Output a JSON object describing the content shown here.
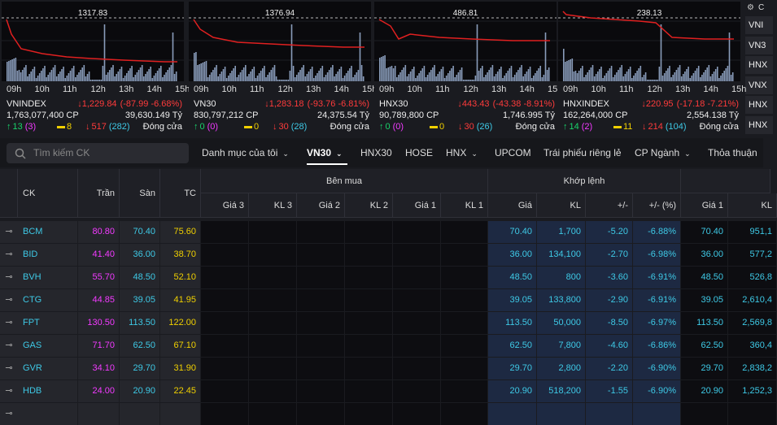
{
  "indices": [
    {
      "ref": "1317.83",
      "name": "VNINDEX",
      "price": "1,229.84",
      "change": "(-87.99 -6.68%)",
      "volume": "1,763,077,400 CP",
      "value": "39,630.149 Tỷ",
      "up": "13",
      "up_ceil": "(3)",
      "unchanged": "8",
      "down": "517",
      "down_floor": "(282)",
      "status": "Đóng cửa"
    },
    {
      "ref": "1376.94",
      "name": "VN30",
      "price": "1,283.18",
      "change": "(-93.76 -6.81%)",
      "volume": "830,797,212 CP",
      "value": "24,375.54 Tỷ",
      "up": "0",
      "up_ceil": "(0)",
      "unchanged": "0",
      "down": "30",
      "down_floor": "(28)",
      "status": "Đóng cửa"
    },
    {
      "ref": "486.81",
      "name": "HNX30",
      "price": "443.43",
      "change": "(-43.38 -8.91%)",
      "volume": "90,789,800 CP",
      "value": "1,746.995 Tỷ",
      "up": "0",
      "up_ceil": "(0)",
      "unchanged": "0",
      "down": "30",
      "down_floor": "(26)",
      "status": "Đóng cửa"
    },
    {
      "ref": "238.13",
      "name": "HNXINDEX",
      "price": "220.95",
      "change": "(-17.18 -7.21%)",
      "volume": "162,264,000 CP",
      "value": "2,554.138 Tỷ",
      "up": "14",
      "up_ceil": "(2)",
      "unchanged": "11",
      "down": "214",
      "down_floor": "(104)",
      "status": "Đóng cửa"
    }
  ],
  "time_labels": [
    "09h",
    "10h",
    "11h",
    "12h",
    "13h",
    "14h",
    "15h"
  ],
  "side_list": {
    "header": "C",
    "items": [
      "VNI",
      "VN3",
      "HNX",
      "VNX",
      "HNX",
      "HNX"
    ]
  },
  "search_placeholder": "Tìm kiếm CK",
  "tabs": [
    "Danh mục của tôi",
    "VN30",
    "HNX30",
    "HOSE",
    "HNX",
    "UPCOM",
    "Trái phiếu riêng lẻ",
    "CP Ngành",
    "Thỏa thuận"
  ],
  "table": {
    "groups": {
      "buy": "Bên mua",
      "match": "Khớp lệnh"
    },
    "columns": [
      "CK",
      "Trần",
      "Sàn",
      "TC",
      "Giá 3",
      "KL 3",
      "Giá 2",
      "KL 2",
      "Giá 1",
      "KL 1",
      "Giá",
      "KL",
      "+/-",
      "+/- (%)",
      "Giá 1",
      "KL"
    ],
    "rows": [
      [
        "BCM",
        "80.80",
        "70.40",
        "75.60",
        "70.40",
        "1,700",
        "-5.20",
        "-6.88%",
        "70.40",
        "951,1"
      ],
      [
        "BID",
        "41.40",
        "36.00",
        "38.70",
        "36.00",
        "134,100",
        "-2.70",
        "-6.98%",
        "36.00",
        "577,2"
      ],
      [
        "BVH",
        "55.70",
        "48.50",
        "52.10",
        "48.50",
        "800",
        "-3.60",
        "-6.91%",
        "48.50",
        "526,8"
      ],
      [
        "CTG",
        "44.85",
        "39.05",
        "41.95",
        "39.05",
        "133,800",
        "-2.90",
        "-6.91%",
        "39.05",
        "2,610,4"
      ],
      [
        "FPT",
        "130.50",
        "113.50",
        "122.00",
        "113.50",
        "50,000",
        "-8.50",
        "-6.97%",
        "113.50",
        "2,569,8"
      ],
      [
        "GAS",
        "71.70",
        "62.50",
        "67.10",
        "62.50",
        "7,800",
        "-4.60",
        "-6.86%",
        "62.50",
        "360,4"
      ],
      [
        "GVR",
        "34.10",
        "29.70",
        "31.90",
        "29.70",
        "2,800",
        "-2.20",
        "-6.90%",
        "29.70",
        "2,838,2"
      ],
      [
        "HDB",
        "24.00",
        "20.90",
        "22.45",
        "20.90",
        "518,200",
        "-1.55",
        "-6.90%",
        "20.90",
        "1,252,3"
      ]
    ]
  }
}
